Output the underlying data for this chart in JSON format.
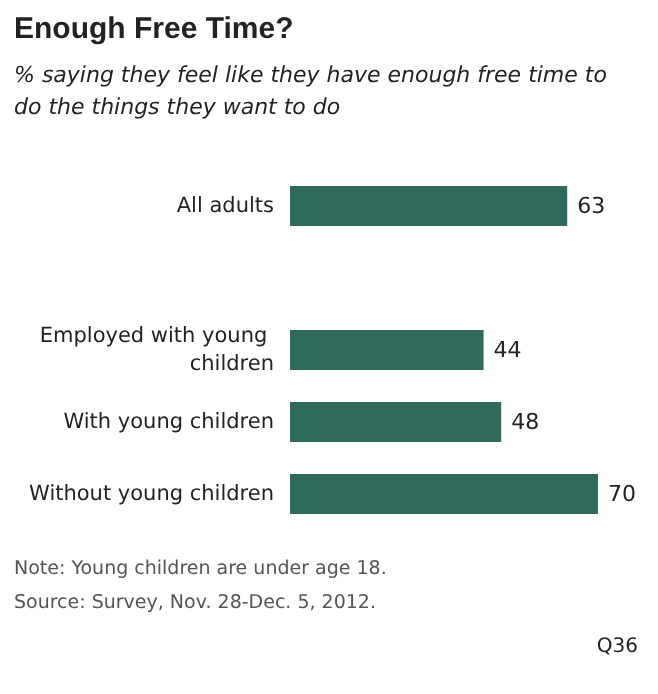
{
  "chart_data": {
    "type": "bar",
    "orientation": "horizontal",
    "title": "Enough Free Time?",
    "subtitle": "% saying they feel like they have enough free time to do the things they want to do",
    "categories": [
      "All adults",
      null,
      "Employed with young children",
      "With young children",
      "Without young children"
    ],
    "values": [
      63,
      null,
      44,
      48,
      70
    ],
    "color": "#2e6b5c",
    "data_labels": true,
    "annotations": [
      "Note: Young children are under age 18.",
      "Source: Survey, Nov. 28-Dec. 5, 2012.",
      "Q36"
    ]
  }
}
